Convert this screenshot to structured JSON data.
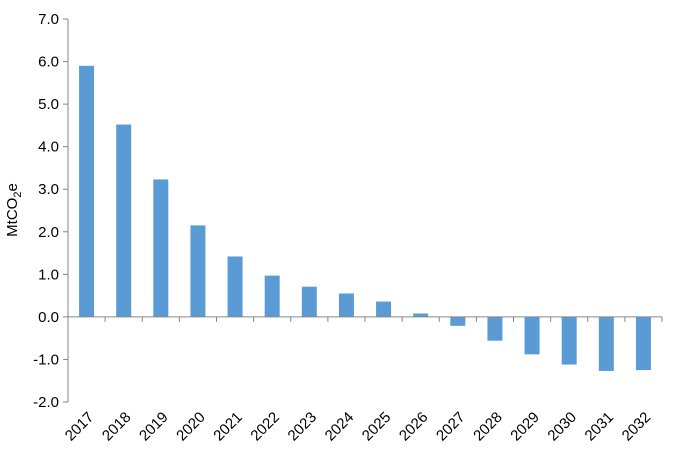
{
  "chart_data": {
    "type": "bar",
    "title": "",
    "xlabel": "",
    "ylabel": "MtCO",
    "ylabel_subscript": "2",
    "ylabel_suffix": "e",
    "categories": [
      "2017",
      "2018",
      "2019",
      "2020",
      "2021",
      "2022",
      "2023",
      "2024",
      "2025",
      "2026",
      "2027",
      "2028",
      "2029",
      "2030",
      "2031",
      "2032"
    ],
    "values": [
      5.9,
      4.52,
      3.23,
      2.15,
      1.42,
      0.97,
      0.71,
      0.55,
      0.36,
      0.08,
      -0.21,
      -0.56,
      -0.88,
      -1.12,
      -1.27,
      -1.25
    ],
    "ylim": [
      -2.0,
      7.0
    ],
    "yticks": [
      "-2.0",
      "-1.0",
      "0.0",
      "1.0",
      "2.0",
      "3.0",
      "4.0",
      "5.0",
      "6.0",
      "7.0"
    ],
    "grid": false,
    "legend": "none",
    "bar_color": "#5b9bd5",
    "axis_color": "#868686"
  }
}
